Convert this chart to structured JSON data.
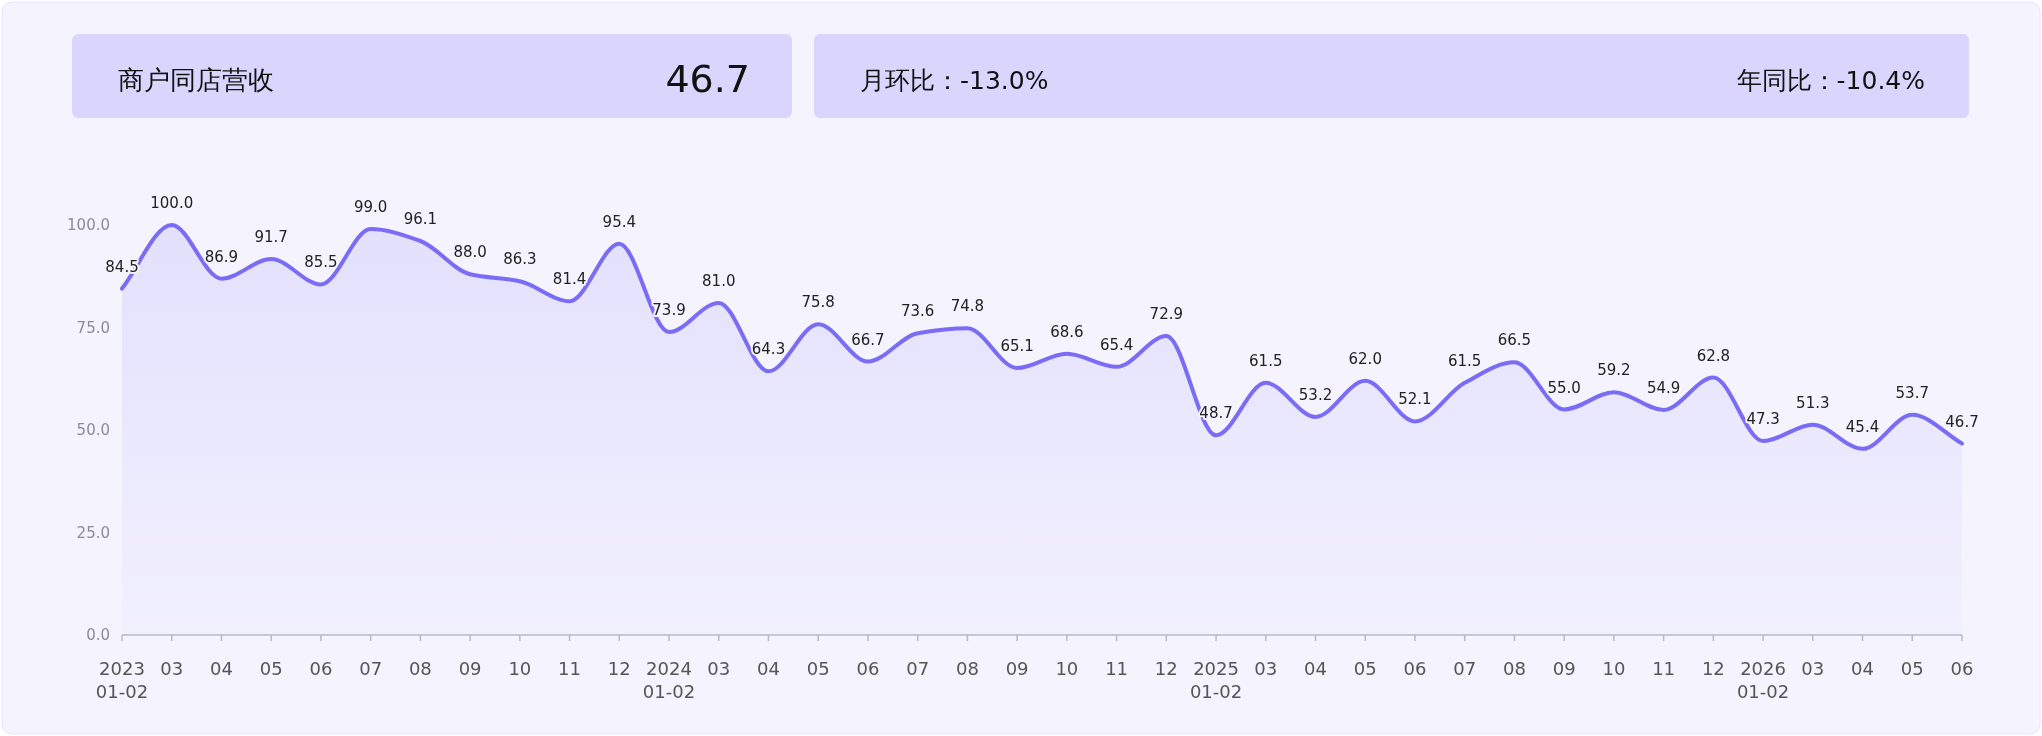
{
  "chart_data": {
    "type": "area",
    "title": "商户同店营收",
    "annotations": [
      "46.7",
      "月环比：-13.0%",
      "年同比：-10.4%"
    ],
    "categories": [
      "2023\n01-02",
      "03",
      "04",
      "05",
      "06",
      "07",
      "08",
      "09",
      "10",
      "11",
      "12",
      "2024\n01-02",
      "03",
      "04",
      "05",
      "06",
      "07",
      "08",
      "09",
      "10",
      "11",
      "12",
      "2025\n01-02",
      "03",
      "04",
      "05",
      "06",
      "07",
      "08",
      "09",
      "10",
      "11",
      "12",
      "2026\n01-02",
      "03",
      "04",
      "05",
      "06"
    ],
    "series": [
      {
        "color": "#7a6cf5",
        "values": [
          84.5,
          100.0,
          86.9,
          91.7,
          85.5,
          99.0,
          96.1,
          88.0,
          86.3,
          81.4,
          95.4,
          73.9,
          81.0,
          64.3,
          75.8,
          66.7,
          73.6,
          74.8,
          65.1,
          68.6,
          65.4,
          72.9,
          48.7,
          61.5,
          53.2,
          62.0,
          52.1,
          61.5,
          66.5,
          55.0,
          59.2,
          54.9,
          62.8,
          47.3,
          51.3,
          45.4,
          53.7,
          46.7
        ],
        "value_labels": [
          "84.5",
          "100.0",
          "86.9",
          "91.7",
          "85.5",
          "99.0",
          "96.1",
          "88.0",
          "86.3",
          "81.4",
          "95.4",
          "73.9",
          "81.0",
          "64.3",
          "75.8",
          "66.7",
          "73.6",
          "74.8",
          "65.1",
          "68.6",
          "65.4",
          "72.9",
          "48.7",
          "61.5",
          "53.2",
          "62.0",
          "52.1",
          "61.5",
          "66.5",
          "55.0",
          "59.2",
          "54.9",
          "62.8",
          "47.3",
          "51.3",
          "45.4",
          "53.7",
          "46.7"
        ]
      }
    ],
    "ylim": [
      0,
      100
    ],
    "yticks": [
      {
        "value": 0,
        "label": "0.0"
      },
      {
        "value": 25,
        "label": "25.0"
      },
      {
        "value": 50,
        "label": "50.0"
      },
      {
        "value": 75,
        "label": "75.0"
      },
      {
        "value": 100,
        "label": "100.0"
      }
    ]
  }
}
